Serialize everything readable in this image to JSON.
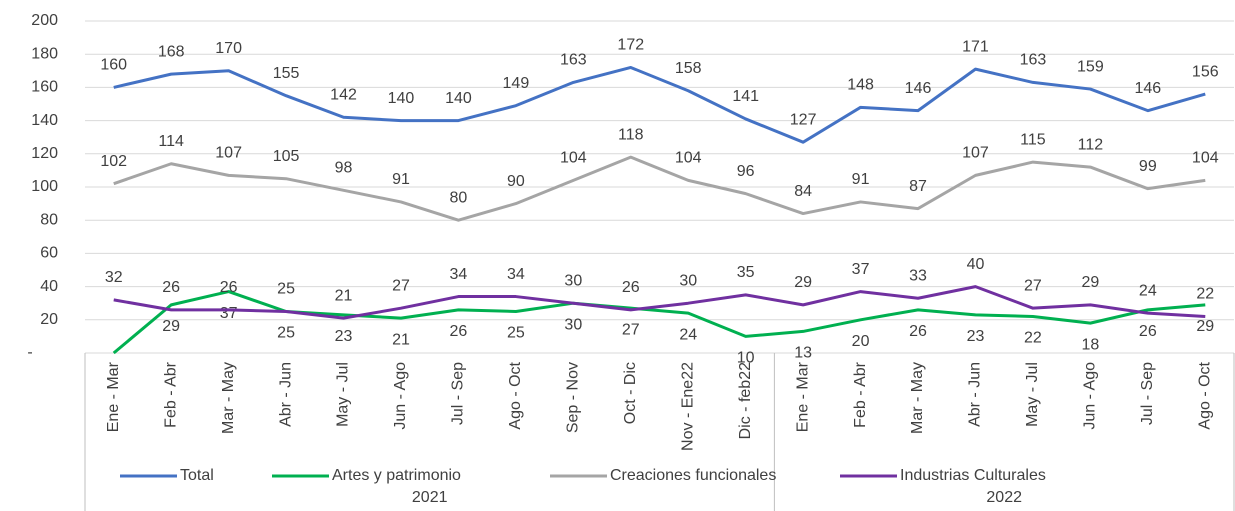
{
  "chart_data": {
    "type": "line",
    "categories": [
      "Ene - Mar",
      "Feb - Abr",
      "Mar - May",
      "Abr - Jun",
      "May - Jul",
      "Jun - Ago",
      "Jul - Sep",
      "Ago - Oct",
      "Sep - Nov",
      "Oct - Dic",
      "Nov - Ene22",
      "Dic - feb22",
      "Ene - Mar",
      "Feb - Abr",
      "Mar - May",
      "Abr - Jun",
      "May - Jul",
      "Jun - Ago",
      "Jul - Sep",
      "Ago - Oct"
    ],
    "category_groups": [
      "2021",
      "2021",
      "2021",
      "2021",
      "2021",
      "2021",
      "2021",
      "2021",
      "2021",
      "2021",
      "2021",
      "2021",
      "2022",
      "2022",
      "2022",
      "2022",
      "2022",
      "2022",
      "2022",
      "2022"
    ],
    "series": [
      {
        "name": "Total",
        "color": "#4472c4",
        "label_position": "above",
        "values": [
          160,
          168,
          170,
          155,
          142,
          140,
          140,
          149,
          163,
          172,
          158,
          141,
          127,
          148,
          146,
          171,
          163,
          159,
          146,
          156
        ]
      },
      {
        "name": "Artes y patrimonio",
        "color": "#00b050",
        "label_position": "below",
        "values": [
          0,
          29,
          37,
          25,
          23,
          21,
          26,
          25,
          30,
          27,
          24,
          10,
          13,
          20,
          26,
          23,
          22,
          18,
          26,
          29
        ],
        "value_labels": [
          "-",
          "29",
          "37",
          "25",
          "23",
          "21",
          "26",
          "25",
          "30",
          "27",
          "24",
          "10",
          "13",
          "20",
          "26",
          "23",
          "22",
          "18",
          "26",
          "29"
        ]
      },
      {
        "name": "Creaciones funcionales",
        "color": "#a5a5a5",
        "label_position": "above",
        "values": [
          102,
          114,
          107,
          105,
          98,
          91,
          80,
          90,
          104,
          118,
          104,
          96,
          84,
          91,
          87,
          107,
          115,
          112,
          99,
          104
        ]
      },
      {
        "name": "Industrias Culturales",
        "color": "#7030a0",
        "label_position": "above",
        "values": [
          32,
          26,
          26,
          25,
          21,
          27,
          34,
          34,
          30,
          26,
          30,
          35,
          29,
          37,
          33,
          40,
          27,
          29,
          24,
          22
        ]
      }
    ],
    "ylim": [
      0,
      200
    ],
    "yticks": [
      {
        "value": 0,
        "label": "-"
      },
      20,
      40,
      60,
      80,
      100,
      120,
      140,
      160,
      180,
      200
    ],
    "grid": true,
    "legend": "bottom"
  }
}
